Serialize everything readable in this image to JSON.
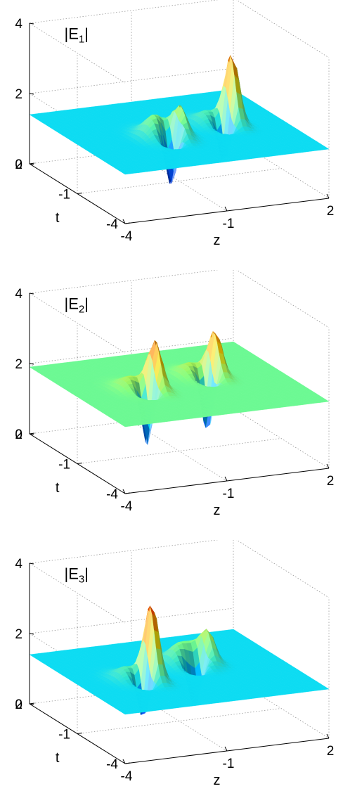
{
  "chart_data": [
    {
      "type": "surface",
      "title_parts": [
        "|E",
        "1",
        "|"
      ],
      "xlabel": "z",
      "ylabel": "t",
      "zticks": [
        "0",
        "2",
        "4"
      ],
      "zlim": [
        0,
        4
      ],
      "xticks": [
        "-4",
        "-1",
        "2"
      ],
      "xlim": [
        -4,
        2
      ],
      "yticks": [
        "-4",
        "-1",
        "2"
      ],
      "ylim": [
        -4,
        2
      ],
      "grid": true,
      "background_level": 1.4,
      "colormap": [
        "#00008f",
        "#0050ff",
        "#00d8ff",
        "#7fff80",
        "#ffe000",
        "#ff5000",
        "#7f0000"
      ],
      "features": [
        {
          "z": -1.3,
          "t": -1.6,
          "peak": 2.1
        },
        {
          "z": -1.1,
          "t": -1.3,
          "peak": 2.0
        },
        {
          "z": 0.6,
          "t": -0.9,
          "peak": 3.4
        }
      ]
    },
    {
      "type": "surface",
      "title_parts": [
        "|E",
        "2",
        "|"
      ],
      "xlabel": "z",
      "ylabel": "t",
      "zticks": [
        "0",
        "2",
        "4"
      ],
      "zlim": [
        0,
        4
      ],
      "xticks": [
        "-4",
        "-1",
        "2"
      ],
      "xlim": [
        -4,
        2
      ],
      "yticks": [
        "-4",
        "-1",
        "2"
      ],
      "ylim": [
        -4,
        2
      ],
      "grid": true,
      "background_level": 1.9,
      "colormap": [
        "#00008f",
        "#0050ff",
        "#00d8ff",
        "#7fff80",
        "#ffe000",
        "#ff5000",
        "#7f0000"
      ],
      "features": [
        {
          "z": -1.8,
          "t": -1.2,
          "peak": 3.3
        },
        {
          "z": 0.2,
          "t": -0.7,
          "peak": 3.2
        }
      ]
    },
    {
      "type": "surface",
      "title_parts": [
        "|E",
        "3",
        "|"
      ],
      "xlabel": "z",
      "ylabel": "t",
      "zticks": [
        "0",
        "2",
        "4"
      ],
      "zlim": [
        0,
        4
      ],
      "xticks": [
        "-4",
        "-1",
        "2"
      ],
      "xlim": [
        -4,
        2
      ],
      "yticks": [
        "-4",
        "-1",
        "2"
      ],
      "ylim": [
        -4,
        2
      ],
      "grid": true,
      "background_level": 1.4,
      "colormap": [
        "#00008f",
        "#0050ff",
        "#00d8ff",
        "#7fff80",
        "#ffe000",
        "#ff5000",
        "#7f0000"
      ],
      "features": [
        {
          "z": -2.0,
          "t": -1.4,
          "peak": 3.6
        },
        {
          "z": -0.2,
          "t": -0.7,
          "peak": 2.2
        },
        {
          "z": 0.1,
          "t": -0.5,
          "peak": 2.2
        }
      ]
    }
  ]
}
